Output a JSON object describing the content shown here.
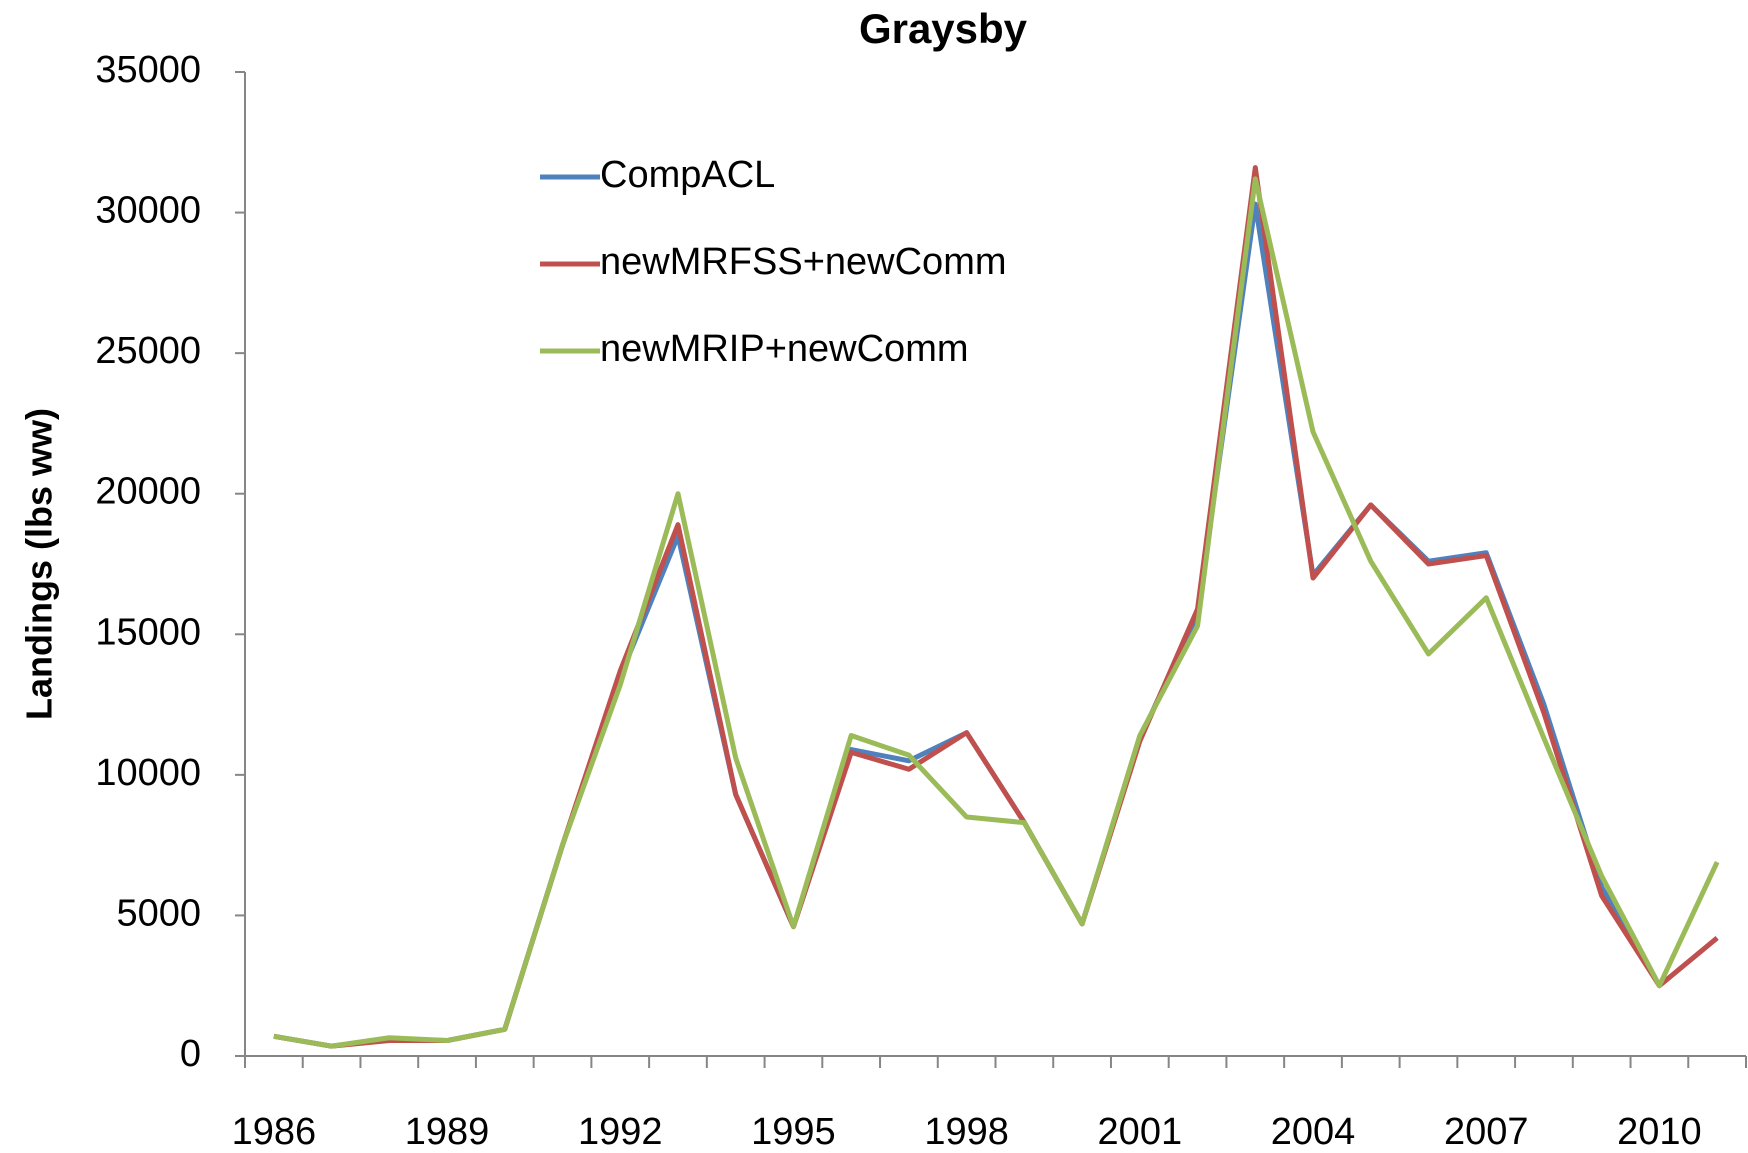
{
  "chart_data": {
    "type": "line",
    "title": "Graysby",
    "y_label": "Landings (lbs ww)",
    "categories": [
      "1986",
      null,
      null,
      "1989",
      null,
      null,
      "1992",
      null,
      null,
      "1995",
      null,
      null,
      "1998",
      null,
      null,
      "2001",
      null,
      null,
      "2004",
      null,
      null,
      "2007",
      null,
      null,
      "2010",
      null
    ],
    "series": [
      {
        "name": "CompACL",
        "color": "#4f81bd",
        "values": [
          700,
          350,
          600,
          550,
          950,
          7500,
          13500,
          18500,
          9300,
          4600,
          10900,
          10500,
          11500,
          8300,
          4700,
          11300,
          15700,
          30300,
          17100,
          19600,
          17600,
          17900,
          12500,
          6000,
          2500,
          null
        ]
      },
      {
        "name": "newMRFSS+newComm",
        "color": "#c0504d",
        "values": [
          700,
          350,
          550,
          550,
          950,
          7500,
          13700,
          18900,
          9300,
          4600,
          10800,
          10200,
          11500,
          8300,
          4700,
          11200,
          15900,
          31600,
          17000,
          19600,
          17500,
          17800,
          12200,
          5700,
          2500,
          4200
        ]
      },
      {
        "name": "newMRIP+newComm",
        "color": "#9bbb59",
        "values": [
          700,
          350,
          650,
          550,
          950,
          7500,
          13200,
          20000,
          10600,
          4600,
          11400,
          10700,
          8500,
          8300,
          4700,
          11400,
          15300,
          31200,
          22200,
          17600,
          14300,
          16300,
          11300,
          6400,
          2500,
          6900
        ]
      }
    ],
    "ylim": [
      0,
      35000
    ],
    "yticks": [
      0,
      5000,
      10000,
      15000,
      20000,
      25000,
      30000,
      35000
    ],
    "grid": false
  }
}
